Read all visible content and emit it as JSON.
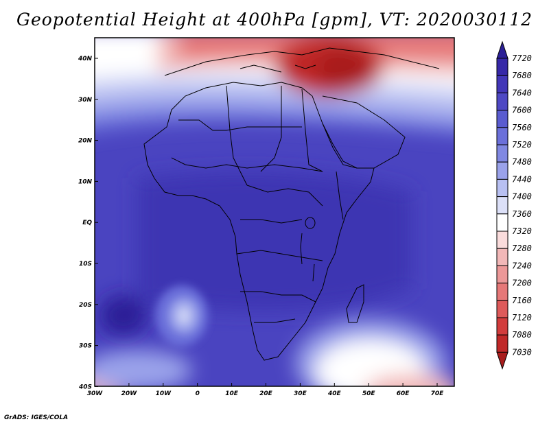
{
  "title": "Geopotential Height at 400hPa [gpm], VT: 2020030112",
  "credit": "GrADS: IGES/COLA",
  "lat_labels": [
    "40N",
    "30N",
    "20N",
    "10N",
    "EQ",
    "10S",
    "20S",
    "30S",
    "40S"
  ],
  "lon_labels": [
    "30W",
    "20W",
    "10W",
    "0",
    "10E",
    "20E",
    "30E",
    "40E",
    "50E",
    "60E",
    "70E"
  ],
  "colorbar": {
    "levels": [
      "7720",
      "7680",
      "7640",
      "7600",
      "7560",
      "7520",
      "7480",
      "7440",
      "7400",
      "7360",
      "7320",
      "7280",
      "7240",
      "7200",
      "7160",
      "7120",
      "7080",
      "7030"
    ],
    "colors": [
      "#2b1f96",
      "#3628a8",
      "#4236b8",
      "#4e48c4",
      "#5a5cd0",
      "#6b70da",
      "#8088e2",
      "#9aa2ea",
      "#b8c0f2",
      "#dce0f8",
      "#ffffff",
      "#fadcdc",
      "#f2b8b8",
      "#ec9898",
      "#e67878",
      "#de5a5a",
      "#d23c3c",
      "#c02828",
      "#a81c1c"
    ]
  },
  "map": {
    "extent": {
      "lon_min": -30,
      "lon_max": 75,
      "lat_min": -40,
      "lat_max": 45
    },
    "fill_colors": {
      "low": "#c02828",
      "mid": "#ffffff",
      "high": "#4236b8"
    }
  }
}
